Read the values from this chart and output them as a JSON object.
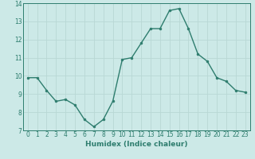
{
  "x": [
    0,
    1,
    2,
    3,
    4,
    5,
    6,
    7,
    8,
    9,
    10,
    11,
    12,
    13,
    14,
    15,
    16,
    17,
    18,
    19,
    20,
    21,
    22,
    23
  ],
  "y": [
    9.9,
    9.9,
    9.2,
    8.6,
    8.7,
    8.4,
    7.6,
    7.2,
    7.6,
    8.6,
    10.9,
    11.0,
    11.8,
    12.6,
    12.6,
    13.6,
    13.7,
    12.6,
    11.2,
    10.8,
    9.9,
    9.7,
    9.2,
    9.1
  ],
  "xlabel": "Humidex (Indice chaleur)",
  "ylim": [
    7,
    14
  ],
  "xlim": [
    -0.5,
    23.5
  ],
  "yticks": [
    7,
    8,
    9,
    10,
    11,
    12,
    13,
    14
  ],
  "xticks": [
    0,
    1,
    2,
    3,
    4,
    5,
    6,
    7,
    8,
    9,
    10,
    11,
    12,
    13,
    14,
    15,
    16,
    17,
    18,
    19,
    20,
    21,
    22,
    23
  ],
  "line_color": "#2e7d6e",
  "marker_color": "#2e7d6e",
  "bg_color": "#cce9e7",
  "grid_color": "#b8d8d5",
  "axis_color": "#2e7d6e",
  "tick_fontsize": 5.5,
  "xlabel_fontsize": 6.5
}
